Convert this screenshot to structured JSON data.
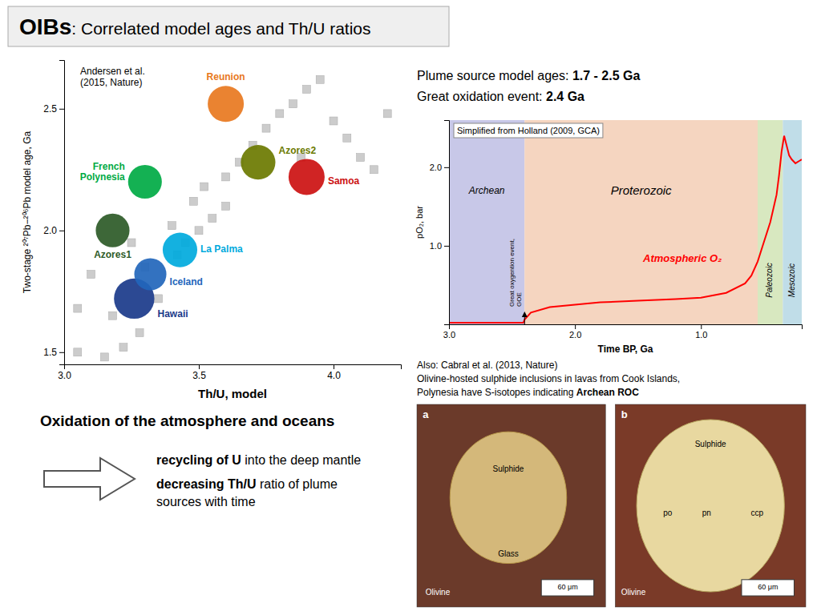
{
  "chart_data": [
    {
      "type": "scatter",
      "title": "OIBs",
      "subtitle": ": Correlated model ages and Th/U ratios",
      "x_label": "Th/U, model",
      "y_label": "Two-stage ²⁰⁷Pb−²⁰⁶Pb model age, Ga",
      "xlim": [
        3.0,
        4.25
      ],
      "ylim": [
        1.45,
        2.7
      ],
      "xticks": [
        {
          "value": 3.0,
          "label": "3.0"
        },
        3.5,
        {
          "value": 4.0,
          "label": "4.0"
        }
      ],
      "yticks": [
        1.5,
        {
          "value": 2.0,
          "label": "2.0"
        },
        2.5
      ],
      "series": [
        {
          "color": "#cccccc",
          "marker": "square",
          "x": [
            3.05,
            3.15,
            3.22,
            3.28,
            3.18,
            3.35,
            3.3,
            3.42,
            3.45,
            3.5,
            3.55,
            3.48,
            3.52,
            3.6,
            3.65,
            3.7,
            3.75,
            3.8,
            3.85,
            3.9,
            3.95,
            4.0,
            4.05,
            4.1,
            4.15,
            4.2,
            3.88,
            3.6,
            3.4,
            3.25,
            3.1,
            3.05
          ],
          "values": [
            1.5,
            1.48,
            1.52,
            1.58,
            1.65,
            1.72,
            1.85,
            1.9,
            1.95,
            2.0,
            2.05,
            2.12,
            2.18,
            2.22,
            2.28,
            2.35,
            2.42,
            2.48,
            2.52,
            2.58,
            2.62,
            2.45,
            2.38,
            2.3,
            2.25,
            2.48,
            2.3,
            2.1,
            2.02,
            1.95,
            1.82,
            1.68
          ]
        },
        {
          "name": "Hawaii",
          "color": "#1a3a8a",
          "marker": "circle",
          "x": [
            3.26
          ],
          "values": [
            1.72
          ],
          "sizes": [
            1500
          ]
        },
        {
          "name": "Iceland",
          "color": "#2266bb",
          "marker": "circle",
          "x": [
            3.32
          ],
          "values": [
            1.82
          ],
          "sizes": [
            950
          ]
        },
        {
          "name": "Azores1",
          "color": "#2d5a27",
          "marker": "circle",
          "x": [
            3.18
          ],
          "values": [
            2.0
          ],
          "sizes": [
            1050
          ]
        },
        {
          "name": "La Palma",
          "color": "#00aadd",
          "marker": "circle",
          "x": [
            3.43
          ],
          "values": [
            1.92
          ],
          "sizes": [
            1100
          ]
        },
        {
          "name": "French\nPolynesia",
          "color": "#00aa44",
          "marker": "circle",
          "x": [
            3.3
          ],
          "values": [
            2.2
          ],
          "sizes": [
            1050
          ]
        },
        {
          "name": "Azores2",
          "color": "#6b7a00",
          "marker": "circle",
          "x": [
            3.72
          ],
          "values": [
            2.28
          ],
          "sizes": [
            1100
          ]
        },
        {
          "name": "Reunion",
          "color": "#e87820",
          "marker": "circle",
          "x": [
            3.6
          ],
          "values": [
            2.52
          ],
          "sizes": [
            1200
          ]
        },
        {
          "name": "Samoa",
          "color": "#cc1111",
          "marker": "circle",
          "x": [
            3.9
          ],
          "values": [
            2.22
          ],
          "sizes": [
            1200
          ]
        }
      ],
      "annotations": [
        "Andersen et al.\n(2015, Nature)",
        "Oxidation of the atmosphere and oceans",
        "recycling of U",
        " into the deep mantle",
        "decreasing Th/U",
        " ratio of plume",
        "sources with time"
      ]
    },
    {
      "type": "line",
      "x_label": "Time BP, Ga",
      "y_label": "pO₂, bar",
      "xlim": [
        3.0,
        0.2
      ],
      "ylim": [
        0,
        2.6
      ],
      "xticks": [
        {
          "value": 3.0,
          "label": "3.0"
        },
        {
          "value": 2.0,
          "label": "2.0"
        },
        {
          "value": 1.0,
          "label": "1.0"
        }
      ],
      "yticks": [
        {
          "value": 1.0,
          "label": "1.0"
        },
        {
          "value": 2.0,
          "label": "2.0"
        }
      ],
      "series": [
        {
          "name": "Atmospheric O₂",
          "color": "red",
          "x": [
            3.0,
            2.5,
            2.41,
            2.4,
            2.35,
            2.2,
            2.0,
            1.8,
            1.5,
            1.2,
            1.0,
            0.8,
            0.65,
            0.6,
            0.55,
            0.5,
            0.45,
            0.4,
            0.38,
            0.36,
            0.34,
            0.3,
            0.28,
            0.25,
            0.22,
            0.2
          ],
          "values": [
            0.02,
            0.02,
            0.02,
            0.06,
            0.15,
            0.22,
            0.25,
            0.28,
            0.3,
            0.32,
            0.34,
            0.4,
            0.52,
            0.62,
            0.8,
            1.05,
            1.3,
            1.65,
            1.9,
            2.2,
            2.4,
            2.15,
            2.1,
            2.05,
            2.08,
            2.1
          ]
        }
      ],
      "regions": [
        {
          "name": "Archean",
          "from": 3.0,
          "to": 2.4,
          "color": "#c8c8e8"
        },
        {
          "name": "Proterozoic",
          "from": 2.4,
          "to": 0.55,
          "color": "#f5d5c0"
        },
        {
          "name": "Paleozoic",
          "from": 0.55,
          "to": 0.35,
          "color": "#d8e8c0"
        },
        {
          "name": "Mesozoic",
          "from": 0.35,
          "to": 0.2,
          "color": "#c0dde8"
        }
      ],
      "events": [
        {
          "name": "Great oxygention event,\nGOE",
          "x": 2.4
        }
      ],
      "annotations": [
        "Simplified from Holland (2009, GCA)",
        "Plume source model ages: ",
        "1.7 - 2.5 Ga",
        "Great oxidation event: ",
        "2.4 Ga",
        "Also: Cabral et al. (2013, Nature)",
        "Olivine-hosted sulphide inclusions in lavas from Cook Islands,",
        "Polynesia have S-isotopes indicating ",
        "Archean ROC",
        "a",
        "b",
        "Sulphide",
        "Glass",
        "Olivine",
        "60 μm",
        "Sulphide",
        "po",
        "pn",
        "ccp",
        "Olivine",
        "60 μm"
      ]
    }
  ]
}
